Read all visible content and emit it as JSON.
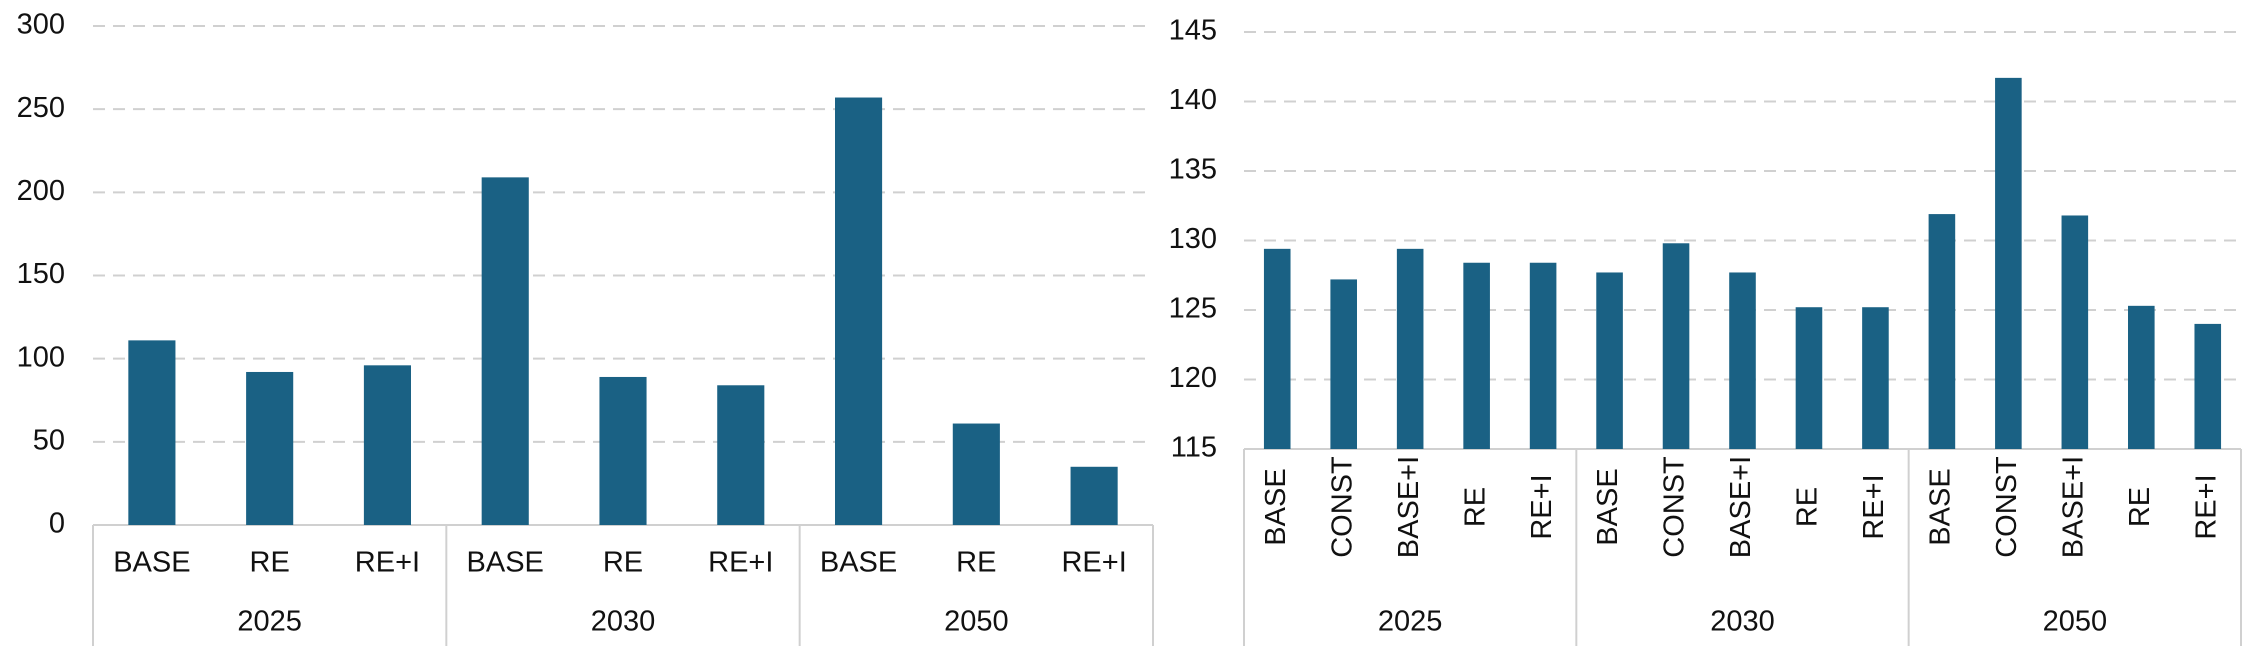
{
  "chart_data": [
    {
      "type": "bar",
      "color": "#1a6184",
      "ylim": [
        0,
        300
      ],
      "yticks": [
        0,
        50,
        100,
        150,
        200,
        250,
        300
      ],
      "grid": true,
      "groups": [
        {
          "label": "2025",
          "categories": [
            "BASE",
            "RE",
            "RE+I"
          ],
          "values": [
            111,
            92,
            96
          ]
        },
        {
          "label": "2030",
          "categories": [
            "BASE",
            "RE",
            "RE+I"
          ],
          "values": [
            209,
            89,
            84
          ]
        },
        {
          "label": "2050",
          "categories": [
            "BASE",
            "RE",
            "RE+I"
          ],
          "values": [
            257,
            61,
            35
          ]
        }
      ]
    },
    {
      "type": "bar",
      "color": "#1a6184",
      "ylim": [
        115,
        145
      ],
      "yticks": [
        115,
        120,
        125,
        130,
        135,
        140,
        145
      ],
      "grid": true,
      "groups": [
        {
          "label": "2025",
          "categories": [
            "BASE",
            "CONST",
            "BASE+I",
            "RE",
            "RE+I"
          ],
          "values": [
            129.4,
            127.2,
            129.4,
            128.4,
            128.4
          ]
        },
        {
          "label": "2030",
          "categories": [
            "BASE",
            "CONST",
            "BASE+I",
            "RE",
            "RE+I"
          ],
          "values": [
            127.7,
            129.8,
            127.7,
            125.2,
            125.2
          ]
        },
        {
          "label": "2050",
          "categories": [
            "BASE",
            "CONST",
            "BASE+I",
            "RE",
            "RE+I"
          ],
          "values": [
            131.9,
            141.7,
            131.8,
            125.3,
            124.0
          ]
        }
      ]
    }
  ]
}
